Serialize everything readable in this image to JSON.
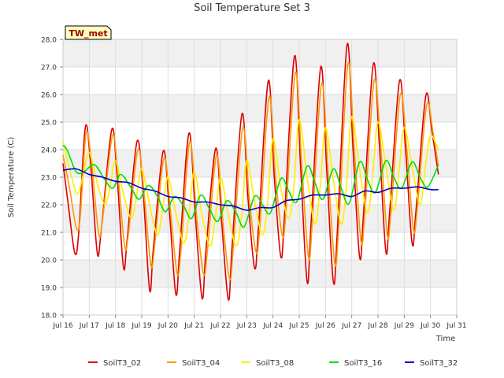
{
  "chart_data": {
    "type": "line",
    "title": "Soil Temperature Set 3",
    "xlabel": "Time",
    "ylabel": "Soil Temperature (C)",
    "badge": "TW_met",
    "xlim": [
      16,
      31
    ],
    "ylim": [
      18.0,
      28.0
    ],
    "x_ticks": [
      {
        "value": 16,
        "label": "Jul 16"
      },
      {
        "value": 17,
        "label": "Jul 17"
      },
      {
        "value": 18,
        "label": "Jul 18"
      },
      {
        "value": 19,
        "label": "Jul 19"
      },
      {
        "value": 20,
        "label": "Jul 20"
      },
      {
        "value": 21,
        "label": "Jul 21"
      },
      {
        "value": 22,
        "label": "Jul 22"
      },
      {
        "value": 23,
        "label": "Jul 23"
      },
      {
        "value": 24,
        "label": "Jul 24"
      },
      {
        "value": 25,
        "label": "Jul 25"
      },
      {
        "value": 26,
        "label": "Jul 26"
      },
      {
        "value": 27,
        "label": "Jul 27"
      },
      {
        "value": 28,
        "label": "Jul 28"
      },
      {
        "value": 29,
        "label": "Jul 29"
      },
      {
        "value": 30,
        "label": "Jul 30"
      },
      {
        "value": 31,
        "label": "Jul 31"
      }
    ],
    "y_ticks": [
      {
        "value": 18,
        "label": "18.0"
      },
      {
        "value": 19,
        "label": "19.0"
      },
      {
        "value": 20,
        "label": "20.0"
      },
      {
        "value": 21,
        "label": "21.0"
      },
      {
        "value": 22,
        "label": "22.0"
      },
      {
        "value": 23,
        "label": "23.0"
      },
      {
        "value": 24,
        "label": "24.0"
      },
      {
        "value": 25,
        "label": "25.0"
      },
      {
        "value": 26,
        "label": "26.0"
      },
      {
        "value": 27,
        "label": "27.0"
      },
      {
        "value": 28,
        "label": "28.0"
      }
    ],
    "grid": true,
    "legend_position": "bottom",
    "series": [
      {
        "name": "SoilT3_02",
        "color": "#dd0000",
        "x": [
          16.0,
          16.2,
          16.45,
          16.6,
          16.85,
          17.05,
          17.3,
          17.45,
          17.85,
          18.05,
          18.3,
          18.45,
          18.82,
          19.05,
          19.3,
          19.45,
          19.82,
          20.05,
          20.3,
          20.45,
          20.8,
          21.05,
          21.3,
          21.45,
          21.82,
          22.05,
          22.3,
          22.45,
          22.82,
          23.05,
          23.3,
          23.45,
          23.82,
          24.05,
          24.3,
          24.45,
          24.82,
          25.05,
          25.3,
          25.45,
          25.82,
          26.05,
          26.3,
          26.45,
          26.82,
          27.05,
          27.3,
          27.45,
          27.82,
          28.05,
          28.3,
          28.45,
          28.82,
          29.05,
          29.3,
          29.45,
          29.82,
          30.05,
          30.3
        ],
        "y": [
          23.5,
          22.0,
          20.25,
          21.0,
          24.8,
          23.5,
          20.3,
          21.0,
          24.7,
          23.2,
          19.75,
          20.8,
          24.3,
          22.5,
          18.9,
          20.5,
          23.95,
          21.8,
          18.75,
          20.4,
          24.6,
          21.5,
          18.6,
          20.4,
          24.05,
          21.3,
          18.55,
          20.6,
          25.3,
          22.2,
          19.7,
          21.2,
          26.5,
          23.0,
          20.1,
          21.8,
          27.4,
          23.4,
          19.2,
          21.3,
          27.0,
          23.2,
          19.2,
          21.0,
          27.8,
          24.0,
          20.1,
          21.7,
          27.1,
          24.2,
          20.3,
          21.8,
          26.5,
          24.0,
          20.6,
          21.8,
          25.95,
          24.7,
          23.1
        ]
      },
      {
        "name": "SoilT3_04",
        "color": "#ff9900",
        "x": [
          16.0,
          16.25,
          16.5,
          16.65,
          16.88,
          17.1,
          17.35,
          17.5,
          17.88,
          18.1,
          18.35,
          18.5,
          18.85,
          19.1,
          19.35,
          19.5,
          19.85,
          20.1,
          20.35,
          20.5,
          20.83,
          21.1,
          21.35,
          21.5,
          21.85,
          22.1,
          22.35,
          22.5,
          22.85,
          23.1,
          23.35,
          23.5,
          23.85,
          24.1,
          24.35,
          24.5,
          24.85,
          25.1,
          25.35,
          25.5,
          25.85,
          26.1,
          26.35,
          26.5,
          26.85,
          27.1,
          27.35,
          27.5,
          27.85,
          28.1,
          28.35,
          28.5,
          28.85,
          29.1,
          29.35,
          29.5,
          29.85,
          30.1,
          30.3
        ],
        "y": [
          23.8,
          22.6,
          21.2,
          21.5,
          24.6,
          23.4,
          21.0,
          21.4,
          24.5,
          23.0,
          20.5,
          21.0,
          24.0,
          22.3,
          19.8,
          20.6,
          23.7,
          21.7,
          19.5,
          20.4,
          24.3,
          21.5,
          19.5,
          20.3,
          23.8,
          21.3,
          19.3,
          20.6,
          24.8,
          22.2,
          20.3,
          21.2,
          25.9,
          23.0,
          20.9,
          21.8,
          26.8,
          23.4,
          20.1,
          21.4,
          26.4,
          23.2,
          19.9,
          21.1,
          27.1,
          24.0,
          20.7,
          21.7,
          26.5,
          24.2,
          20.9,
          21.8,
          26.0,
          24.0,
          21.1,
          21.9,
          25.6,
          24.6,
          23.4
        ]
      },
      {
        "name": "SoilT3_08",
        "color": "#ffee00",
        "x": [
          16.0,
          16.3,
          16.55,
          16.75,
          17.0,
          17.3,
          17.6,
          17.8,
          18.0,
          18.3,
          18.6,
          18.8,
          19.0,
          19.3,
          19.6,
          19.8,
          20.0,
          20.3,
          20.6,
          20.8,
          21.0,
          21.3,
          21.6,
          21.8,
          22.0,
          22.3,
          22.6,
          22.8,
          23.0,
          23.3,
          23.6,
          23.8,
          24.0,
          24.3,
          24.6,
          24.8,
          25.0,
          25.3,
          25.6,
          25.8,
          26.0,
          26.3,
          26.6,
          26.8,
          27.0,
          27.3,
          27.6,
          27.8,
          28.0,
          28.3,
          28.6,
          28.8,
          29.0,
          29.3,
          29.6,
          29.8,
          30.0,
          30.3
        ],
        "y": [
          24.3,
          23.1,
          22.4,
          23.0,
          23.9,
          22.8,
          22.0,
          22.7,
          23.6,
          22.4,
          21.5,
          22.3,
          23.3,
          22.0,
          20.9,
          21.9,
          23.0,
          21.7,
          20.6,
          21.6,
          23.2,
          21.6,
          20.5,
          21.5,
          23.0,
          21.6,
          20.5,
          21.6,
          23.6,
          22.1,
          20.9,
          22.1,
          24.4,
          22.6,
          21.5,
          22.7,
          25.1,
          23.0,
          21.3,
          22.7,
          24.8,
          22.9,
          21.3,
          22.7,
          25.2,
          23.3,
          21.7,
          23.1,
          25.0,
          23.4,
          21.8,
          23.2,
          24.8,
          23.4,
          22.0,
          23.3,
          24.5,
          24.0
        ]
      },
      {
        "name": "SoilT3_16",
        "color": "#00dd00",
        "x": [
          16.0,
          16.15,
          16.5,
          16.8,
          17.2,
          17.6,
          17.9,
          18.2,
          18.6,
          18.9,
          19.25,
          19.6,
          19.9,
          20.25,
          20.6,
          20.9,
          21.25,
          21.6,
          21.9,
          22.25,
          22.6,
          22.9,
          23.3,
          23.6,
          23.9,
          24.3,
          24.6,
          24.9,
          25.3,
          25.6,
          25.9,
          26.3,
          26.6,
          26.9,
          27.3,
          27.6,
          27.9,
          28.3,
          28.6,
          28.9,
          29.3,
          29.6,
          29.9,
          30.3
        ],
        "y": [
          24.15,
          24.0,
          23.2,
          23.2,
          23.45,
          22.9,
          22.6,
          23.1,
          22.6,
          22.2,
          22.7,
          22.3,
          21.75,
          22.3,
          21.95,
          21.5,
          22.35,
          21.8,
          21.4,
          22.15,
          21.7,
          21.2,
          22.3,
          22.0,
          21.7,
          22.95,
          22.5,
          22.1,
          23.4,
          22.8,
          22.2,
          23.3,
          22.6,
          22.05,
          23.55,
          22.9,
          22.45,
          23.6,
          23.0,
          22.6,
          23.55,
          23.0,
          22.65,
          23.45
        ]
      },
      {
        "name": "SoilT3_32",
        "color": "#0000cc",
        "x": [
          16.0,
          16.5,
          17.0,
          17.5,
          18.0,
          18.5,
          19.0,
          19.5,
          20.0,
          20.5,
          21.0,
          21.5,
          22.0,
          22.5,
          23.0,
          23.5,
          24.0,
          24.5,
          25.0,
          25.5,
          26.0,
          26.5,
          27.0,
          27.5,
          28.0,
          28.5,
          29.0,
          29.5,
          30.0,
          30.3
        ],
        "y": [
          23.25,
          23.3,
          23.1,
          23.0,
          22.85,
          22.8,
          22.6,
          22.5,
          22.3,
          22.25,
          22.1,
          22.1,
          22.0,
          21.95,
          21.8,
          21.9,
          21.9,
          22.15,
          22.2,
          22.35,
          22.35,
          22.4,
          22.3,
          22.5,
          22.45,
          22.6,
          22.6,
          22.65,
          22.55,
          22.55
        ]
      }
    ]
  }
}
